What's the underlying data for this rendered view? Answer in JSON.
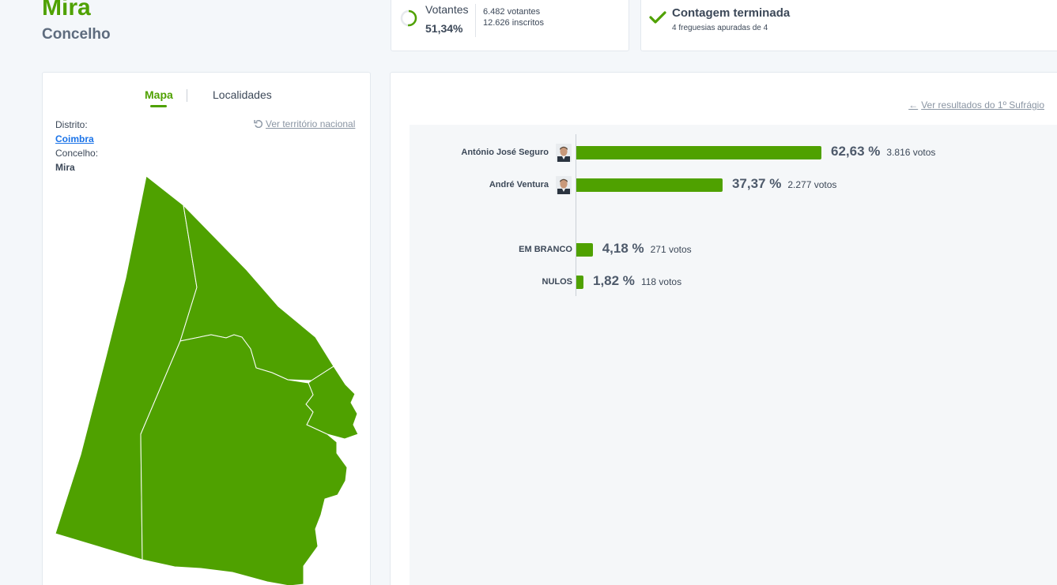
{
  "header": {
    "title": "Mira",
    "subtitle": "Concelho"
  },
  "votantes": {
    "label": "Votantes",
    "percent": "51,34%",
    "turnout_fraction": 0.5134,
    "votantes_text": "6.482 votantes",
    "inscritos_text": "12.626 inscritos",
    "ring_color": "#4fa100"
  },
  "status": {
    "title": "Contagem terminada",
    "subtitle": "4 freguesias apuradas de 4",
    "icon": "check-icon"
  },
  "map_panel": {
    "tabs": [
      {
        "label": "Mapa",
        "active": true
      },
      {
        "label": "Localidades",
        "active": false
      }
    ],
    "national_link": "Ver território nacional",
    "distrito_label": "Distrito:",
    "distrito_value": "Coimbra",
    "concelho_label": "Concelho:",
    "concelho_value": "Mira",
    "fill_color": "#4fa100"
  },
  "results": {
    "first_round_link": "Ver resultados do 1º Sufrágio",
    "bar_color": "#4fa100",
    "chart_data": {
      "type": "bar",
      "orientation": "horizontal",
      "categories": [
        "António José Seguro",
        "André Ventura",
        "EM BRANCO",
        "NULOS"
      ],
      "values": [
        62.63,
        37.37,
        4.18,
        1.82
      ],
      "value_labels": [
        "62,63 %",
        "37,37 %",
        "4,18 %",
        "1,82 %"
      ],
      "votes": [
        "3.816 votos",
        "2.277 votos",
        "271 votos",
        "118 votos"
      ],
      "has_photo": [
        true,
        true,
        false,
        false
      ]
    }
  }
}
